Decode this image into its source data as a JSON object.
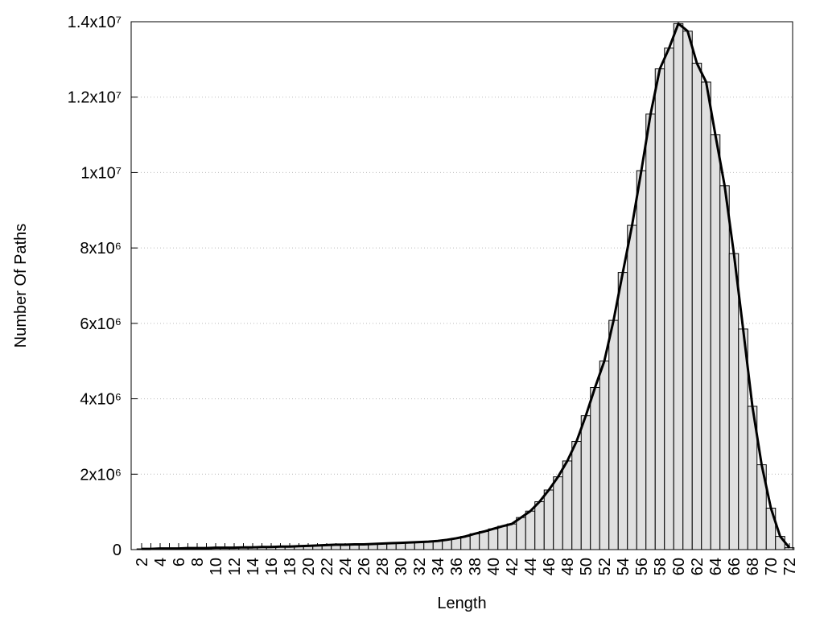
{
  "chart_data": {
    "type": "bar",
    "x_label": "Length",
    "y_label": "Number Of Paths",
    "categories": [
      "2",
      null,
      "4",
      null,
      "6",
      null,
      "8",
      null,
      "10",
      null,
      "12",
      null,
      "14",
      null,
      "16",
      null,
      "18",
      null,
      "20",
      null,
      "22",
      null,
      "24",
      null,
      "26",
      null,
      "28",
      null,
      "30",
      null,
      "32",
      null,
      "34",
      null,
      "36",
      null,
      "38",
      null,
      "40",
      null,
      "42",
      null,
      "44",
      null,
      "46",
      null,
      "48",
      null,
      "50",
      null,
      "52",
      null,
      "54",
      null,
      "56",
      null,
      "58",
      null,
      "60",
      null,
      "62",
      null,
      "64",
      null,
      "66",
      null,
      "68",
      null,
      "70",
      null,
      "72"
    ],
    "values": [
      20000,
      20000,
      30000,
      30000,
      30000,
      40000,
      40000,
      40000,
      50000,
      50000,
      50000,
      60000,
      60000,
      70000,
      70000,
      80000,
      80000,
      90000,
      100000,
      110000,
      120000,
      130000,
      130000,
      140000,
      140000,
      150000,
      160000,
      170000,
      180000,
      190000,
      200000,
      210000,
      230000,
      260000,
      300000,
      350000,
      420000,
      480000,
      550000,
      620000,
      680000,
      850000,
      1020000,
      1270000,
      1580000,
      1930000,
      2350000,
      2870000,
      3550000,
      4300000,
      5000000,
      6080000,
      7350000,
      8600000,
      10050000,
      11550000,
      12750000,
      13300000,
      13950000,
      13750000,
      12900000,
      12400000,
      11000000,
      9650000,
      7850000,
      5850000,
      3800000,
      2250000,
      1100000,
      350000,
      50000
    ],
    "color": "#e0e0e0",
    "line_color": "#000000",
    "ylim": [
      0,
      14000000
    ],
    "yticks": [
      {
        "value": 0,
        "label": "0"
      },
      {
        "value": 2000000,
        "label": "2x10⁶"
      },
      {
        "value": 4000000,
        "label": "4x10⁶"
      },
      {
        "value": 6000000,
        "label": "6x10⁶"
      },
      {
        "value": 8000000,
        "label": "8x10⁶"
      },
      {
        "value": 10000000,
        "label": "1x10⁷"
      },
      {
        "value": 12000000,
        "label": "1.2x10⁷"
      },
      {
        "value": 14000000,
        "label": "1.4x10⁷"
      }
    ],
    "grid": true
  }
}
